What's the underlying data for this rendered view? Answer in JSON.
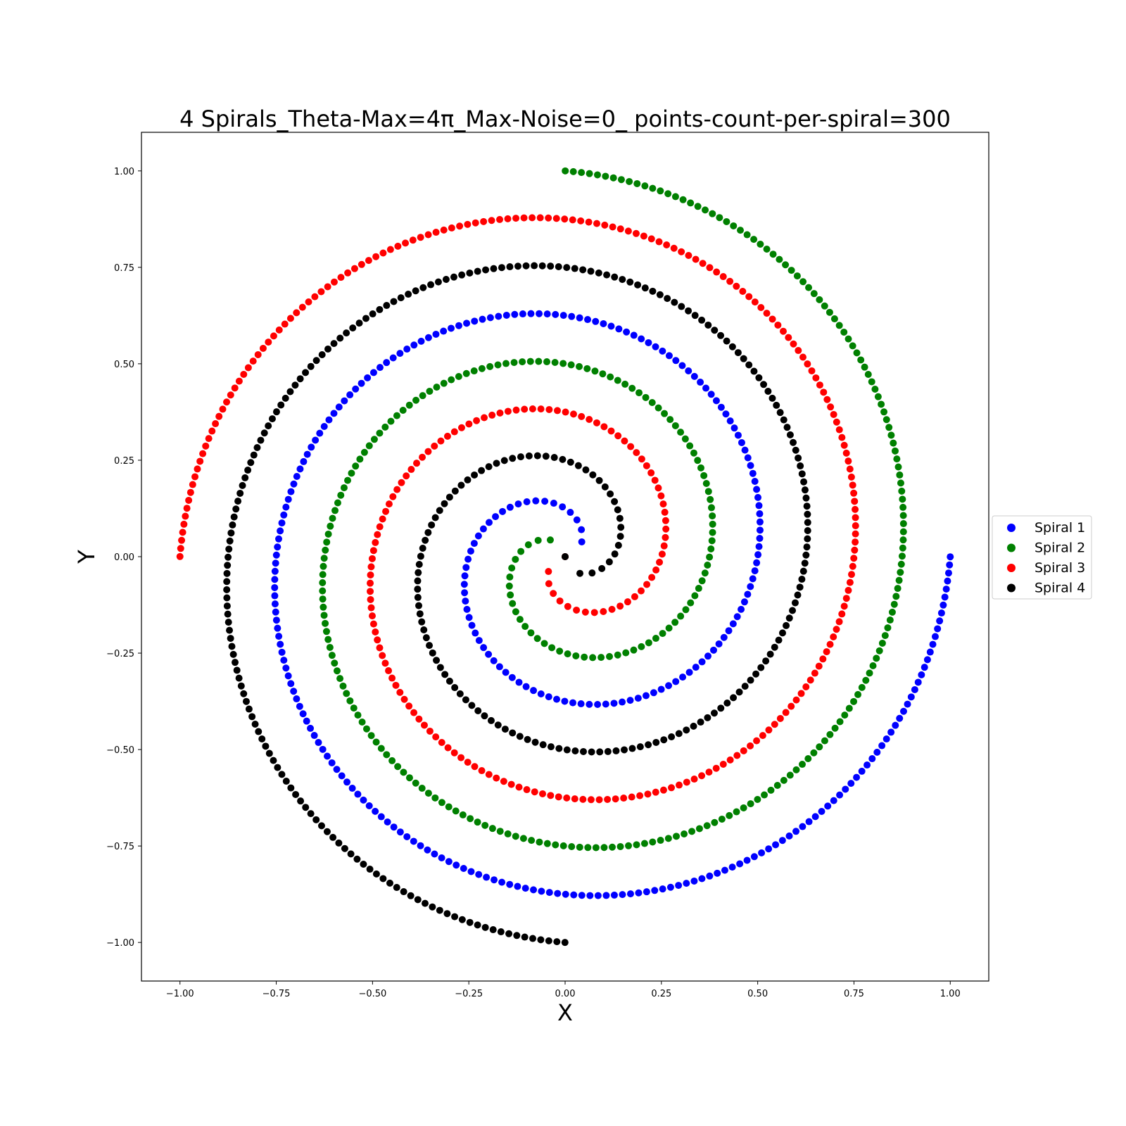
{
  "chart_data": {
    "type": "scatter",
    "title": "4 Spirals_Theta-Max=4π_Max-Noise=0_ points-count-per-spiral=300",
    "xlabel": "X",
    "ylabel": "Y",
    "xlim": [
      -1.1,
      1.1
    ],
    "ylim": [
      -1.1,
      1.1
    ],
    "xticks": [
      -1.0,
      -0.75,
      -0.5,
      -0.25,
      0.0,
      0.25,
      0.5,
      0.75,
      1.0
    ],
    "yticks": [
      -1.0,
      -0.75,
      -0.5,
      -0.25,
      0.0,
      0.25,
      0.5,
      0.75,
      1.0
    ],
    "xtick_labels": [
      "−1.00",
      "−0.75",
      "−0.50",
      "−0.25",
      "0.00",
      "0.25",
      "0.50",
      "0.75",
      "1.00"
    ],
    "ytick_labels": [
      "−1.00",
      "−0.75",
      "−0.50",
      "−0.25",
      "0.00",
      "0.25",
      "0.50",
      "0.75",
      "1.00"
    ],
    "grid": false,
    "legend_position": "center-right-outside",
    "theta_max": 12.566,
    "points_per_spiral": 300,
    "series": [
      {
        "name": "Spiral 1",
        "color": "#0000ff",
        "rotation_deg": 0
      },
      {
        "name": "Spiral 2",
        "color": "#008000",
        "rotation_deg": 90
      },
      {
        "name": "Spiral 3",
        "color": "#ff0000",
        "rotation_deg": 180
      },
      {
        "name": "Spiral 4",
        "color": "#000000",
        "rotation_deg": 270
      }
    ]
  }
}
